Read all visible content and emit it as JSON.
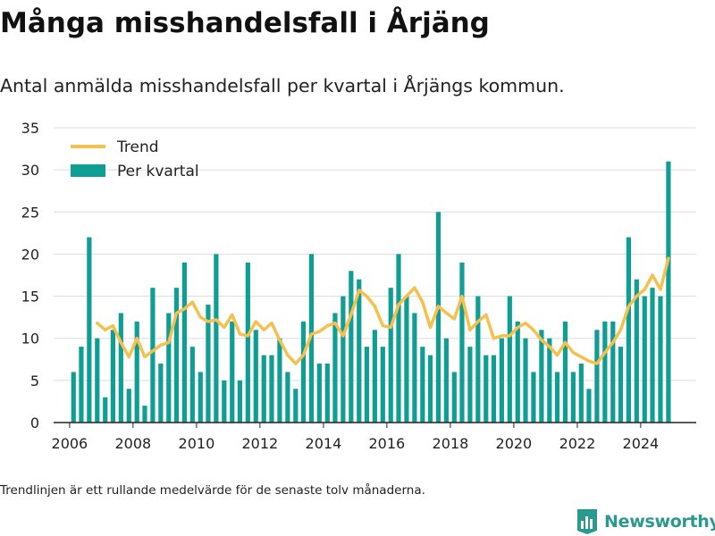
{
  "header": {
    "title": "Många misshandelsfall i Årjäng",
    "subtitle": "Antal anmälda misshandelsfall per kvartal i Årjängs kommun."
  },
  "footer": {
    "note": "Trendlinjen är ett rullande medelvärde för de senaste tolv månaderna.",
    "brand": "Newsworthy"
  },
  "colors": {
    "bar": "#0f9e94",
    "trend": "#f5c04e",
    "grid": "#dddddd",
    "axis": "#222222",
    "brand": "#2a9a8e",
    "text": "#222222"
  },
  "icons": {
    "brand_logo": "bar-chart-shield-icon"
  },
  "chart_data": {
    "type": "bar",
    "x_axis": "date",
    "ylim": [
      0,
      35
    ],
    "xlim": [
      "2005-07-01",
      "2025-10-01"
    ],
    "yticks": [
      0,
      5,
      10,
      15,
      20,
      25,
      30,
      35
    ],
    "xticks": [
      "2006",
      "2008",
      "2010",
      "2012",
      "2014",
      "2016",
      "2018",
      "2020",
      "2022",
      "2024"
    ],
    "grid": true,
    "legend_position": "top-left",
    "legend": [
      {
        "label": "Trend",
        "kind": "line"
      },
      {
        "label": "Per kvartal",
        "kind": "bar"
      }
    ],
    "series": [
      {
        "name": "Per kvartal",
        "kind": "bar",
        "x": [
          "2006-Q1",
          "2006-Q2",
          "2006-Q3",
          "2006-Q4",
          "2007-Q1",
          "2007-Q2",
          "2007-Q3",
          "2007-Q4",
          "2008-Q1",
          "2008-Q2",
          "2008-Q3",
          "2008-Q4",
          "2009-Q1",
          "2009-Q2",
          "2009-Q3",
          "2009-Q4",
          "2010-Q1",
          "2010-Q2",
          "2010-Q3",
          "2010-Q4",
          "2011-Q1",
          "2011-Q2",
          "2011-Q3",
          "2011-Q4",
          "2012-Q1",
          "2012-Q2",
          "2012-Q3",
          "2012-Q4",
          "2013-Q1",
          "2013-Q2",
          "2013-Q3",
          "2013-Q4",
          "2014-Q1",
          "2014-Q2",
          "2014-Q3",
          "2014-Q4",
          "2015-Q1",
          "2015-Q2",
          "2015-Q3",
          "2015-Q4",
          "2016-Q1",
          "2016-Q2",
          "2016-Q3",
          "2016-Q4",
          "2017-Q1",
          "2017-Q2",
          "2017-Q3",
          "2017-Q4",
          "2018-Q1",
          "2018-Q2",
          "2018-Q3",
          "2018-Q4",
          "2019-Q1",
          "2019-Q2",
          "2019-Q3",
          "2019-Q4",
          "2020-Q1",
          "2020-Q2",
          "2020-Q3",
          "2020-Q4",
          "2021-Q1",
          "2021-Q2",
          "2021-Q3",
          "2021-Q4",
          "2022-Q1",
          "2022-Q2",
          "2022-Q3",
          "2022-Q4",
          "2023-Q1",
          "2023-Q2",
          "2023-Q3",
          "2023-Q4",
          "2024-Q1",
          "2024-Q2",
          "2024-Q3",
          "2024-Q4"
        ],
        "values": [
          6,
          9,
          22,
          10,
          3,
          11,
          13,
          4,
          12,
          2,
          16,
          7,
          13,
          16,
          19,
          9,
          6,
          14,
          20,
          5,
          12,
          5,
          19,
          11,
          8,
          8,
          10,
          6,
          4,
          12,
          20,
          7,
          7,
          13,
          15,
          18,
          17,
          9,
          11,
          9,
          16,
          20,
          15,
          13,
          9,
          8,
          25,
          10,
          6,
          19,
          9,
          15,
          8,
          8,
          10,
          15,
          12,
          10,
          6,
          11,
          10,
          6,
          12,
          6,
          7,
          4,
          11,
          12,
          12,
          9,
          22,
          17,
          15,
          16,
          15,
          31
        ]
      },
      {
        "name": "Trend",
        "kind": "line",
        "x": [
          "2006-Q4",
          "2007-Q1",
          "2007-Q2",
          "2007-Q3",
          "2007-Q4",
          "2008-Q1",
          "2008-Q2",
          "2008-Q3",
          "2008-Q4",
          "2009-Q1",
          "2009-Q2",
          "2009-Q3",
          "2009-Q4",
          "2010-Q1",
          "2010-Q2",
          "2010-Q3",
          "2010-Q4",
          "2011-Q1",
          "2011-Q2",
          "2011-Q3",
          "2011-Q4",
          "2012-Q1",
          "2012-Q2",
          "2012-Q3",
          "2012-Q4",
          "2013-Q1",
          "2013-Q2",
          "2013-Q3",
          "2013-Q4",
          "2014-Q1",
          "2014-Q2",
          "2014-Q3",
          "2014-Q4",
          "2015-Q1",
          "2015-Q2",
          "2015-Q3",
          "2015-Q4",
          "2016-Q1",
          "2016-Q2",
          "2016-Q3",
          "2016-Q4",
          "2017-Q1",
          "2017-Q2",
          "2017-Q3",
          "2017-Q4",
          "2018-Q1",
          "2018-Q2",
          "2018-Q3",
          "2018-Q4",
          "2019-Q1",
          "2019-Q2",
          "2019-Q3",
          "2019-Q4",
          "2020-Q1",
          "2020-Q2",
          "2020-Q3",
          "2020-Q4",
          "2021-Q1",
          "2021-Q2",
          "2021-Q3",
          "2021-Q4",
          "2022-Q1",
          "2022-Q2",
          "2022-Q3",
          "2022-Q4",
          "2023-Q1",
          "2023-Q2",
          "2023-Q3",
          "2023-Q4",
          "2024-Q1",
          "2024-Q2",
          "2024-Q3",
          "2024-Q4"
        ],
        "values": [
          11.8,
          11.0,
          11.5,
          9.5,
          7.8,
          10.0,
          7.8,
          8.5,
          9.2,
          9.5,
          13.0,
          13.5,
          14.3,
          12.5,
          12.0,
          12.2,
          11.3,
          12.8,
          10.5,
          10.3,
          12.0,
          11.0,
          11.8,
          9.8,
          8.0,
          7.0,
          8.0,
          10.5,
          10.8,
          11.5,
          11.8,
          10.3,
          12.8,
          15.7,
          15.0,
          13.8,
          11.5,
          11.3,
          14.0,
          15.0,
          16.0,
          14.3,
          11.3,
          13.8,
          13.0,
          12.3,
          15.0,
          11.0,
          12.0,
          12.8,
          10.0,
          10.3,
          10.3,
          11.3,
          11.8,
          11.0,
          9.8,
          9.0,
          8.0,
          9.5,
          8.3,
          7.8,
          7.3,
          7.0,
          8.3,
          9.5,
          11.0,
          13.8,
          15.0,
          15.8,
          17.5,
          15.8,
          19.5
        ]
      }
    ]
  }
}
